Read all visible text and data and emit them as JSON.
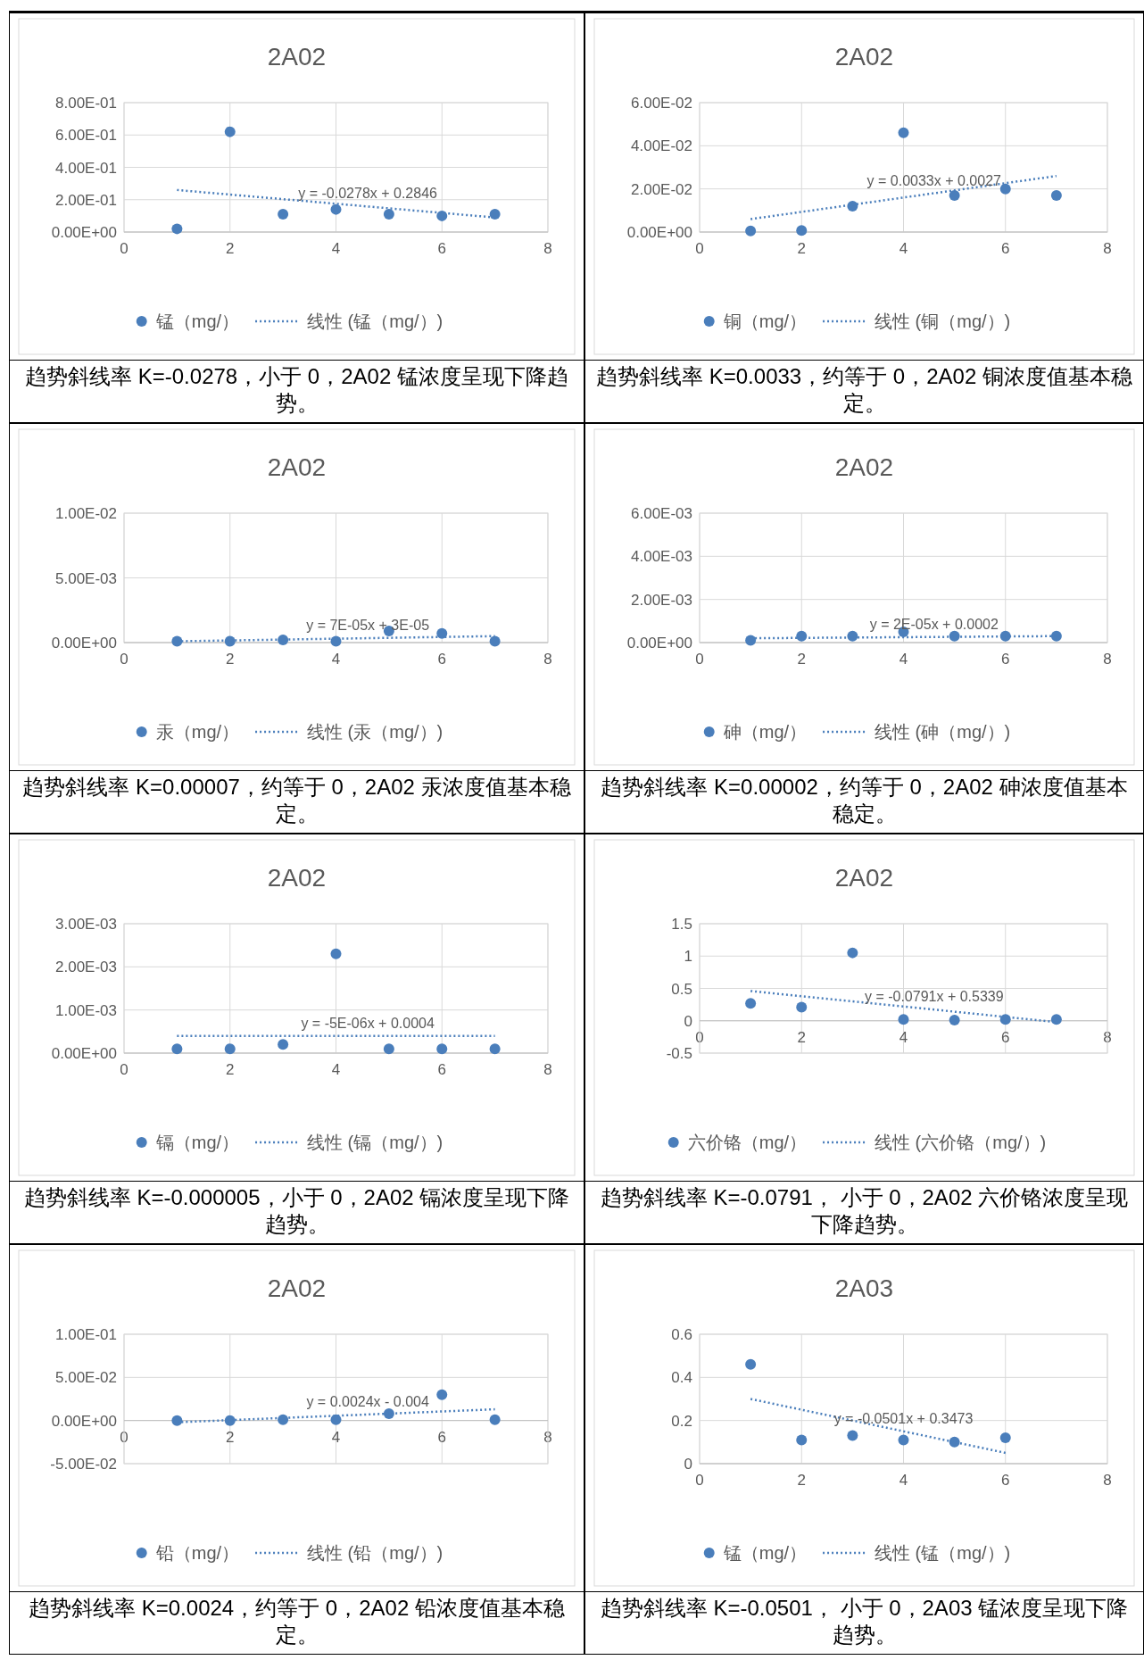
{
  "chart_data": [
    {
      "type": "scatter",
      "title": "2A02",
      "xlim": [
        0,
        8
      ],
      "xticks": [
        0,
        2,
        4,
        6,
        8
      ],
      "ylim": [
        0,
        0.8
      ],
      "yticks": [
        {
          "value": 0,
          "label": "0.00E+00"
        },
        {
          "value": 0.2,
          "label": "2.00E-01"
        },
        {
          "value": 0.4,
          "label": "4.00E-01"
        },
        {
          "value": 0.6,
          "label": "6.00E-01"
        },
        {
          "value": 0.8,
          "label": "8.00E-01"
        }
      ],
      "grid": true,
      "legend": "bottom",
      "series": [
        {
          "name": "锰（mg/）",
          "marker": "circle",
          "color": "#4a7ebb",
          "x": [
            1,
            2,
            3,
            4,
            5,
            6,
            7
          ],
          "values": [
            0.02,
            0.62,
            0.11,
            0.14,
            0.11,
            0.1,
            0.11
          ]
        },
        {
          "name": "线性 (锰（mg/）)",
          "type": "line",
          "line_style": "dotted",
          "color": "#4a7ebb",
          "x": [
            1,
            7
          ],
          "values": [
            0.26,
            0.09
          ]
        }
      ],
      "annotations": [
        "y = -0.0278x + 0.2846",
        "趋势斜线率 K=-0.0278，小于 0，2A02 锰浓度呈现下降趋势。"
      ]
    },
    {
      "type": "scatter",
      "title": "2A02",
      "xlim": [
        0,
        8
      ],
      "xticks": [
        0,
        2,
        4,
        6,
        8
      ],
      "ylim": [
        0,
        0.06
      ],
      "yticks": [
        {
          "value": 0,
          "label": "0.00E+00"
        },
        {
          "value": 0.02,
          "label": "2.00E-02"
        },
        {
          "value": 0.04,
          "label": "4.00E-02"
        },
        {
          "value": 0.06,
          "label": "6.00E-02"
        }
      ],
      "grid": true,
      "legend": "bottom",
      "series": [
        {
          "name": "铜（mg/）",
          "marker": "circle",
          "color": "#4a7ebb",
          "x": [
            1,
            2,
            3,
            4,
            5,
            6,
            7
          ],
          "values": [
            0.0005,
            0.0007,
            0.012,
            0.046,
            0.017,
            0.02,
            0.017
          ]
        },
        {
          "name": "线性 (铜（mg/）)",
          "type": "line",
          "line_style": "dotted",
          "color": "#4a7ebb",
          "x": [
            1,
            7
          ],
          "values": [
            0.006,
            0.026
          ]
        }
      ],
      "annotations": [
        "y = 0.0033x + 0.0027",
        "趋势斜线率 K=0.0033，约等于 0，2A02 铜浓度值基本稳定。"
      ]
    },
    {
      "type": "scatter",
      "title": "2A02",
      "xlim": [
        0,
        8
      ],
      "xticks": [
        0,
        2,
        4,
        6,
        8
      ],
      "ylim": [
        0,
        0.01
      ],
      "yticks": [
        {
          "value": 0,
          "label": "0.00E+00"
        },
        {
          "value": 0.005,
          "label": "5.00E-03"
        },
        {
          "value": 0.01,
          "label": "1.00E-02"
        }
      ],
      "grid": true,
      "legend": "bottom",
      "series": [
        {
          "name": "汞（mg/）",
          "marker": "circle",
          "color": "#4a7ebb",
          "x": [
            1,
            2,
            3,
            4,
            5,
            6,
            7
          ],
          "values": [
            0.0001,
            0.0001,
            0.0002,
            0.0001,
            0.0009,
            0.0007,
            0.0001
          ]
        },
        {
          "name": "线性 (汞（mg/）)",
          "type": "line",
          "line_style": "dotted",
          "color": "#4a7ebb",
          "x": [
            1,
            7
          ],
          "values": [
            0.0001,
            0.0005
          ]
        }
      ],
      "annotations": [
        "y = 7E-05x + 3E-05",
        "趋势斜线率 K=0.00007，约等于 0，2A02 汞浓度值基本稳定。"
      ]
    },
    {
      "type": "scatter",
      "title": "2A02",
      "xlim": [
        0,
        8
      ],
      "xticks": [
        0,
        2,
        4,
        6,
        8
      ],
      "ylim": [
        0,
        0.006
      ],
      "yticks": [
        {
          "value": 0,
          "label": "0.00E+00"
        },
        {
          "value": 0.002,
          "label": "2.00E-03"
        },
        {
          "value": 0.004,
          "label": "4.00E-03"
        },
        {
          "value": 0.006,
          "label": "6.00E-03"
        }
      ],
      "grid": true,
      "legend": "bottom",
      "series": [
        {
          "name": "砷（mg/）",
          "marker": "circle",
          "color": "#4a7ebb",
          "x": [
            1,
            2,
            3,
            4,
            5,
            6,
            7
          ],
          "values": [
            0.0001,
            0.0003,
            0.0003,
            0.0005,
            0.0003,
            0.0003,
            0.0003
          ]
        },
        {
          "name": "线性 (砷（mg/）)",
          "type": "line",
          "line_style": "dotted",
          "color": "#4a7ebb",
          "x": [
            1,
            7
          ],
          "values": [
            0.0002,
            0.0003
          ]
        }
      ],
      "annotations": [
        "y = 2E-05x + 0.0002",
        "趋势斜线率 K=0.00002，约等于 0，2A02 砷浓度值基本稳定。"
      ]
    },
    {
      "type": "scatter",
      "title": "2A02",
      "xlim": [
        0,
        8
      ],
      "xticks": [
        0,
        2,
        4,
        6,
        8
      ],
      "ylim": [
        0,
        0.003
      ],
      "yticks": [
        {
          "value": 0,
          "label": "0.00E+00"
        },
        {
          "value": 0.001,
          "label": "1.00E-03"
        },
        {
          "value": 0.002,
          "label": "2.00E-03"
        },
        {
          "value": 0.003,
          "label": "3.00E-03"
        }
      ],
      "grid": true,
      "legend": "bottom",
      "series": [
        {
          "name": "镉（mg/）",
          "marker": "circle",
          "color": "#4a7ebb",
          "x": [
            1,
            2,
            3,
            4,
            5,
            6,
            7
          ],
          "values": [
            0.0001,
            0.0001,
            0.0002,
            0.0023,
            0.0001,
            0.0001,
            0.0001
          ]
        },
        {
          "name": "线性 (镉（mg/）)",
          "type": "line",
          "line_style": "dotted",
          "color": "#4a7ebb",
          "x": [
            1,
            7
          ],
          "values": [
            0.0004,
            0.0004
          ]
        }
      ],
      "annotations": [
        "y = -5E-06x + 0.0004",
        "趋势斜线率 K=-0.000005，小于 0，2A02 镉浓度呈现下降趋势。"
      ]
    },
    {
      "type": "scatter",
      "title": "2A02",
      "xlim": [
        0,
        8
      ],
      "xticks": [
        0,
        2,
        4,
        6,
        8
      ],
      "ylim": [
        -0.5,
        1.5
      ],
      "yticks": [
        -0.5,
        0,
        0.5,
        1,
        1.5
      ],
      "grid": true,
      "legend": "bottom",
      "series": [
        {
          "name": "六价铬（mg/）",
          "marker": "circle",
          "color": "#4a7ebb",
          "x": [
            1,
            2,
            3,
            4,
            5,
            6,
            7
          ],
          "values": [
            0.27,
            0.21,
            1.05,
            0.02,
            0.01,
            0.02,
            0.02
          ]
        },
        {
          "name": "线性 (六价铬（mg/）)",
          "type": "line",
          "line_style": "dotted",
          "color": "#4a7ebb",
          "x": [
            1,
            7
          ],
          "values": [
            0.46,
            -0.02
          ]
        }
      ],
      "annotations": [
        "y = -0.0791x + 0.5339",
        "趋势斜线率 K=-0.0791， 小于 0，2A02 六价铬浓度呈现下降趋势。"
      ]
    },
    {
      "type": "scatter",
      "title": "2A02",
      "xlim": [
        0,
        8
      ],
      "xticks": [
        0,
        2,
        4,
        6,
        8
      ],
      "ylim": [
        -0.05,
        0.1
      ],
      "yticks": [
        {
          "value": -0.05,
          "label": "-5.00E-02"
        },
        {
          "value": 0,
          "label": "0.00E+00"
        },
        {
          "value": 0.05,
          "label": "5.00E-02"
        },
        {
          "value": 0.1,
          "label": "1.00E-01"
        }
      ],
      "grid": true,
      "legend": "bottom",
      "series": [
        {
          "name": "铅（mg/）",
          "marker": "circle",
          "color": "#4a7ebb",
          "x": [
            1,
            2,
            3,
            4,
            5,
            6,
            7
          ],
          "values": [
            0,
            0,
            0.001,
            0.001,
            0.008,
            0.03,
            0.001
          ]
        },
        {
          "name": "线性 (铅（mg/）)",
          "type": "line",
          "line_style": "dotted",
          "color": "#4a7ebb",
          "x": [
            1,
            7
          ],
          "values": [
            -0.002,
            0.013
          ]
        }
      ],
      "annotations": [
        "y = 0.0024x - 0.004",
        "趋势斜线率 K=0.0024，约等于 0，2A02 铅浓度值基本稳定。"
      ]
    },
    {
      "type": "scatter",
      "title": "2A03",
      "xlim": [
        0,
        8
      ],
      "xticks": [
        0,
        2,
        4,
        6,
        8
      ],
      "ylim": [
        0,
        0.6
      ],
      "yticks": [
        0,
        0.2,
        0.4,
        0.6
      ],
      "grid": true,
      "legend": "bottom",
      "series": [
        {
          "name": "锰（mg/）",
          "marker": "circle",
          "color": "#4a7ebb",
          "x": [
            1,
            2,
            3,
            4,
            5,
            6
          ],
          "values": [
            0.46,
            0.11,
            0.13,
            0.11,
            0.1,
            0.12
          ]
        },
        {
          "name": "线性 (锰（mg/）)",
          "type": "line",
          "line_style": "dotted",
          "color": "#4a7ebb",
          "x": [
            1,
            6
          ],
          "values": [
            0.3,
            0.05
          ]
        }
      ],
      "annotations": [
        "y = -0.0501x + 0.3473",
        "趋势斜线率 K=-0.0501， 小于 0，2A03 锰浓度呈现下降趋势。"
      ]
    }
  ]
}
